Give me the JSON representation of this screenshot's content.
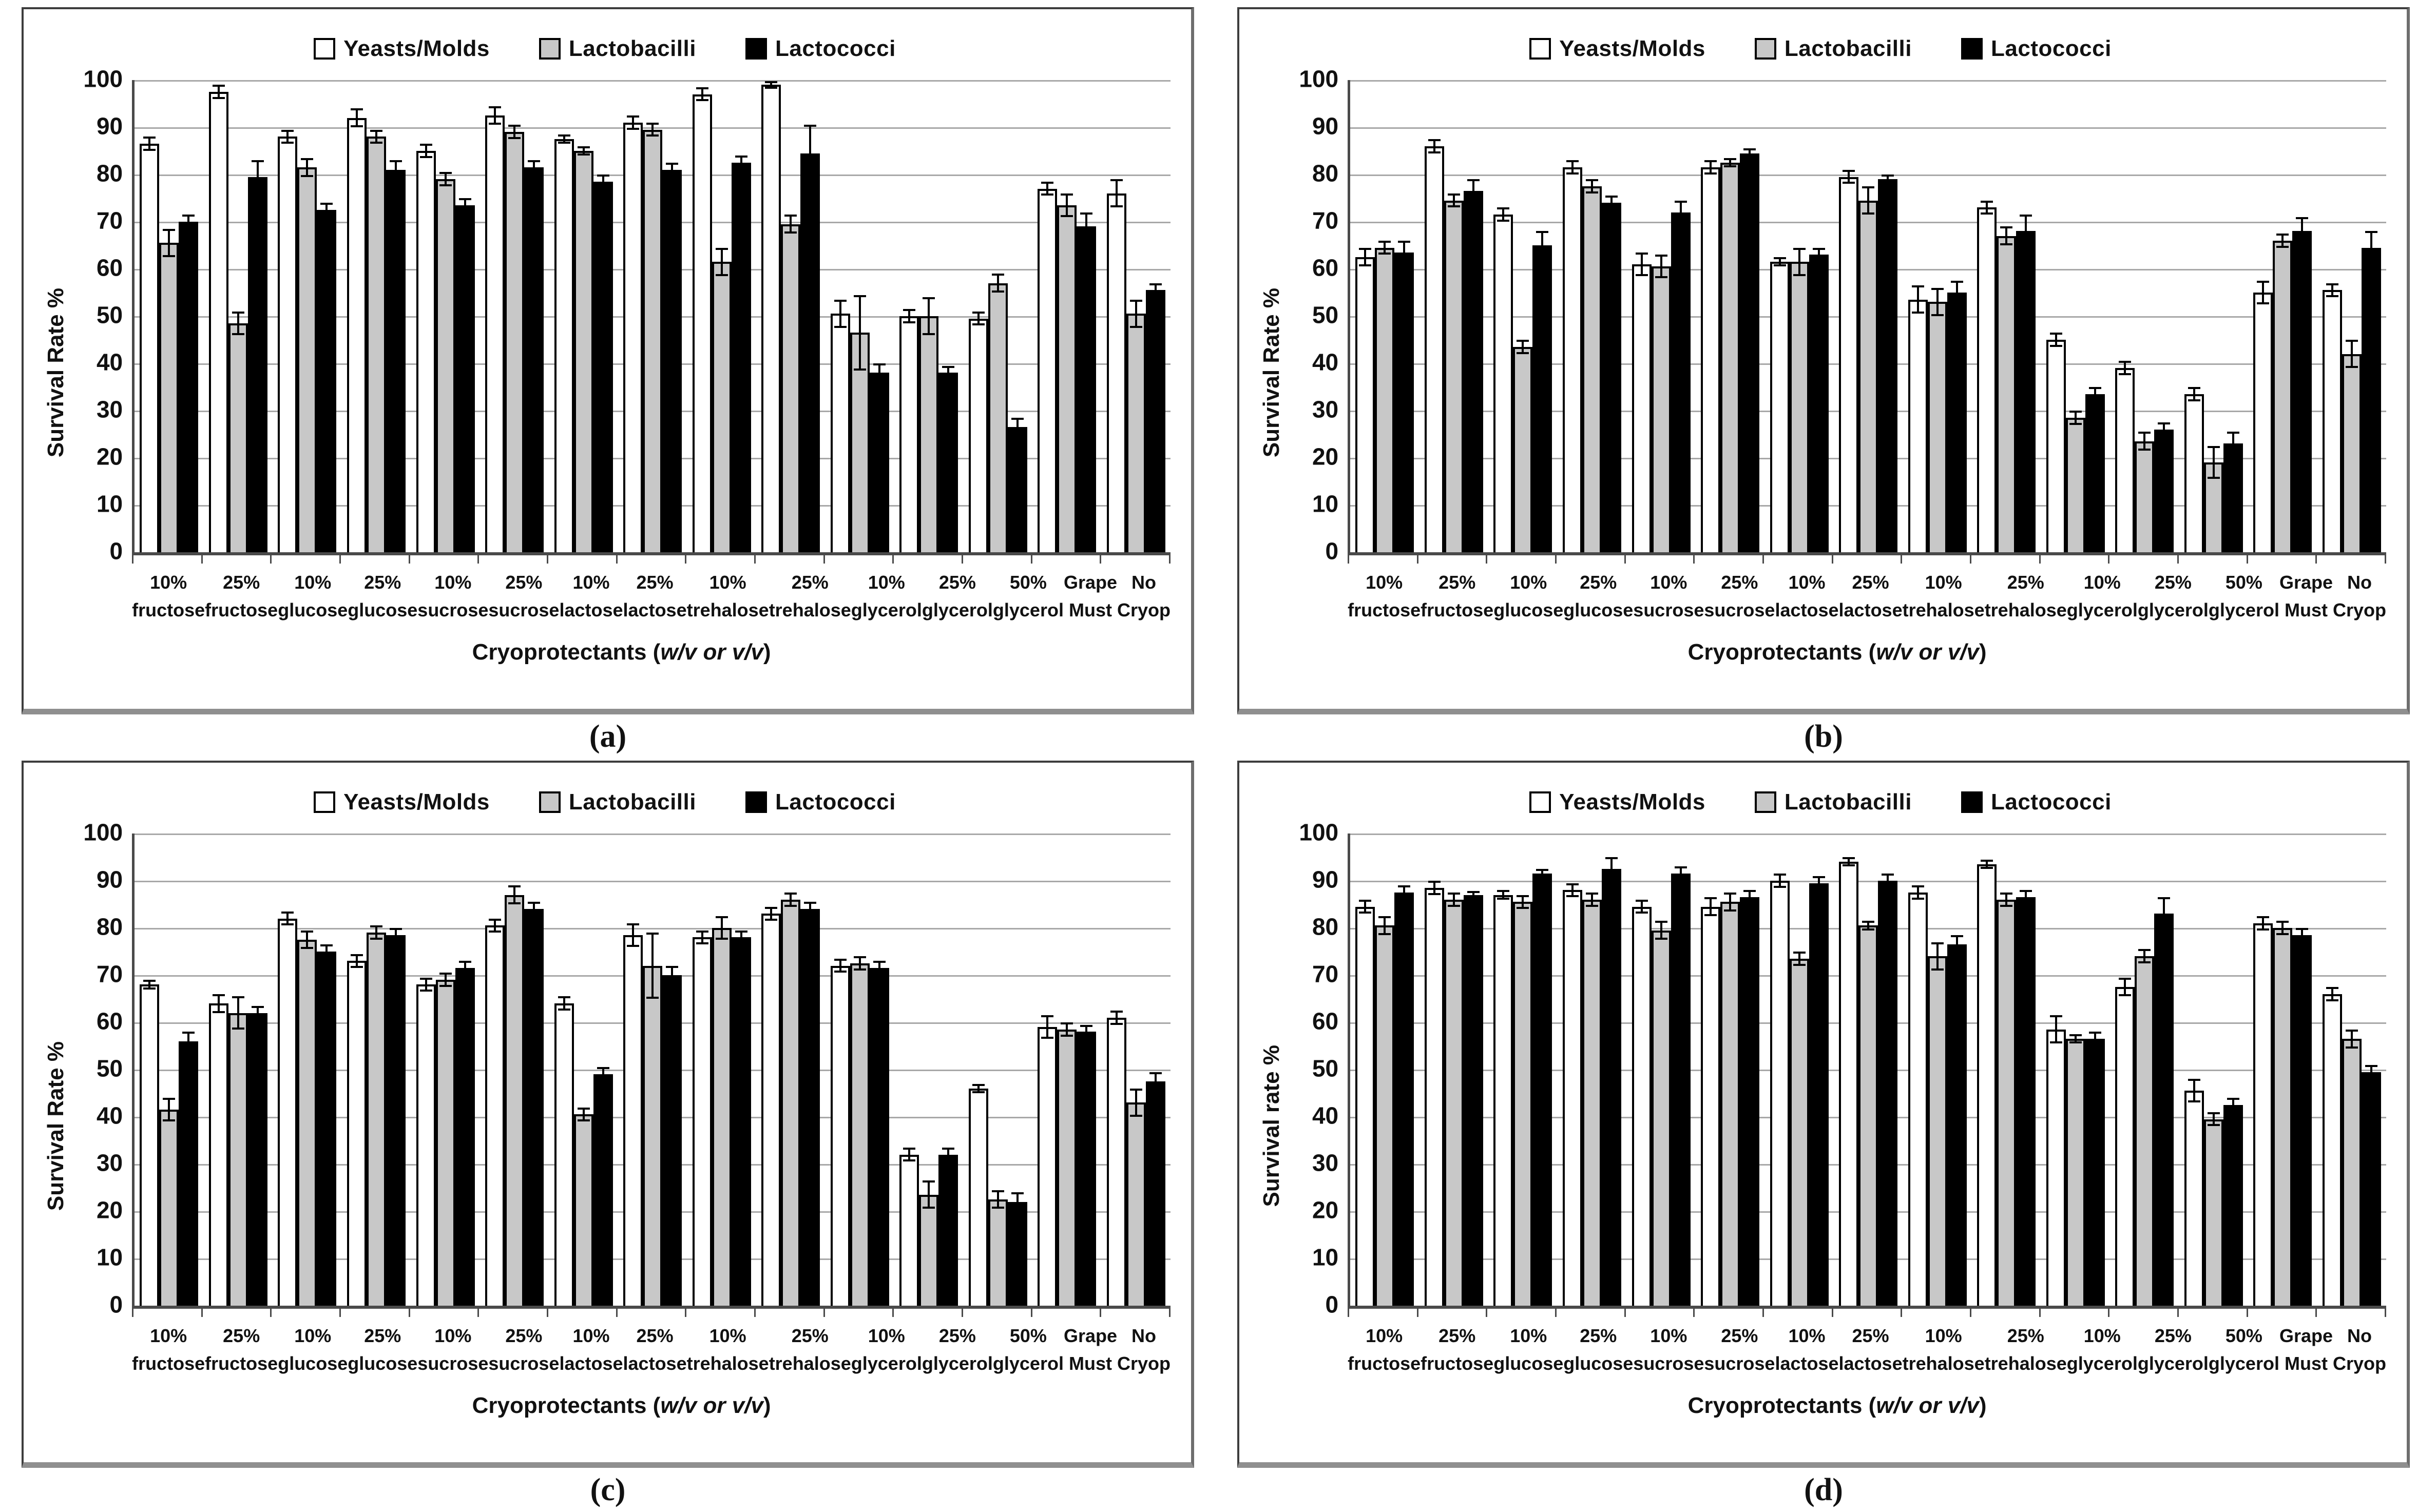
{
  "figure_title": "",
  "legend": {
    "items": [
      {
        "label": "Yeasts/Molds",
        "fill": "#ffffff",
        "border": "#000000"
      },
      {
        "label": "Lactobacilli",
        "fill": "#c8c8c8",
        "border": "#000000"
      },
      {
        "label": "Lactococci",
        "fill": "#000000",
        "border": "#000000"
      }
    ]
  },
  "axis": {
    "ymin": 0,
    "ymax": 100,
    "ystep": 10,
    "xtitle": {
      "prefix": "Cryoprotectants (",
      "italic": "w/v or v/v",
      "suffix": ")"
    }
  },
  "categories": [
    [
      "10%",
      "fructose"
    ],
    [
      "25%",
      "fructose"
    ],
    [
      "10%",
      "glucose"
    ],
    [
      "25%",
      "glucose"
    ],
    [
      "10%",
      "sucrose"
    ],
    [
      "25%",
      "sucrose"
    ],
    [
      "10%",
      "lactose"
    ],
    [
      "25%",
      "lactose"
    ],
    [
      "10%",
      "trehalose"
    ],
    [
      "25%",
      "trehalose"
    ],
    [
      "10%",
      "glycerol"
    ],
    [
      "25%",
      "glycerol"
    ],
    [
      "50%",
      "glycerol"
    ],
    [
      "Grape",
      "Must"
    ],
    [
      "No Cryop"
    ]
  ],
  "chart_data": [
    {
      "type": "bar",
      "caption": "(a)",
      "ylabel": "Survival Rate %",
      "ylim": [
        0,
        100
      ],
      "grid": true,
      "legend_position": "top",
      "categories": [
        "10% fructose",
        "25% fructose",
        "10% glucose",
        "25% glucose",
        "10% sucrose",
        "25% sucrose",
        "10% lactose",
        "25% lactose",
        "10% trehalose",
        "25% trehalose",
        "10% glycerol",
        "25% glycerol",
        "50% glycerol",
        "Grape Must",
        "No Cryop"
      ],
      "series": [
        {
          "name": "Yeasts/Molds",
          "values": [
            86.5,
            97.5,
            88,
            92,
            85,
            92.5,
            87.5,
            91,
            97,
            99,
            50.5,
            50,
            49.5,
            77,
            76
          ],
          "errors": [
            1.5,
            1.5,
            1.5,
            2,
            1.5,
            2,
            1,
            1.5,
            1.5,
            0.8,
            3,
            1.5,
            1.5,
            1.5,
            3
          ]
        },
        {
          "name": "Lactobacilli",
          "values": [
            65.5,
            48.5,
            81.5,
            88,
            79,
            89,
            85,
            89.5,
            61.5,
            69.5,
            46.5,
            50,
            57,
            73.5,
            50.5
          ],
          "errors": [
            3,
            2.5,
            2,
            1.5,
            1.5,
            1.5,
            1,
            1.5,
            3,
            2,
            8,
            4,
            2,
            2.5,
            3
          ]
        },
        {
          "name": "Lactococci",
          "values": [
            70,
            79.5,
            72.5,
            81,
            73.5,
            81.5,
            78.5,
            81,
            82.5,
            84.5,
            38,
            38,
            26.5,
            69,
            55.5
          ],
          "errors": [
            1.5,
            3.5,
            1.5,
            2,
            1.5,
            1.5,
            1.5,
            1.5,
            1.5,
            6,
            2,
            1.5,
            2,
            3,
            1.5
          ]
        }
      ]
    },
    {
      "type": "bar",
      "caption": "(b)",
      "ylabel": "Survival Rate %",
      "ylim": [
        0,
        100
      ],
      "grid": true,
      "legend_position": "top",
      "categories": [
        "10% fructose",
        "25% fructose",
        "10% glucose",
        "25% glucose",
        "10% sucrose",
        "25% sucrose",
        "10% lactose",
        "25% lactose",
        "10% trehalose",
        "25% trehalose",
        "10% glycerol",
        "25% glycerol",
        "50% glycerol",
        "Grape Must",
        "No Cryop"
      ],
      "series": [
        {
          "name": "Yeasts/Molds",
          "values": [
            62.5,
            86,
            71.5,
            81.5,
            61,
            81.5,
            61.5,
            79.5,
            53.5,
            73,
            45,
            39,
            33.5,
            55,
            55.5
          ],
          "errors": [
            2,
            1.5,
            1.5,
            1.5,
            2.5,
            1.5,
            1,
            1.5,
            3,
            1.5,
            1.5,
            1.5,
            1.5,
            2.5,
            1.5
          ]
        },
        {
          "name": "Lactobacilli",
          "values": [
            64.5,
            74.5,
            43.5,
            77.5,
            60.5,
            82.5,
            61.5,
            74.5,
            53,
            67,
            28.5,
            23.5,
            19,
            66,
            42
          ],
          "errors": [
            1.5,
            1.5,
            1.5,
            1.5,
            2.5,
            1,
            3,
            3,
            3,
            2,
            1.5,
            2,
            3.5,
            1.5,
            3
          ]
        },
        {
          "name": "Lactococci",
          "values": [
            63.5,
            76.5,
            65,
            74,
            72,
            84.5,
            63,
            79,
            55,
            68,
            33.5,
            26,
            23,
            68,
            64.5
          ],
          "errors": [
            2.5,
            2.5,
            3,
            1.5,
            2.5,
            1,
            1.5,
            1,
            2.5,
            3.5,
            1.5,
            1.5,
            2.5,
            3,
            3.5
          ]
        }
      ]
    },
    {
      "type": "bar",
      "caption": "(c)",
      "ylabel": "Survival Rate %",
      "ylim": [
        0,
        100
      ],
      "grid": true,
      "legend_position": "top",
      "categories": [
        "10% fructose",
        "25% fructose",
        "10% glucose",
        "25% glucose",
        "10% sucrose",
        "25% sucrose",
        "10% lactose",
        "25% lactose",
        "10% trehalose",
        "25% trehalose",
        "10% glycerol",
        "25% glycerol",
        "50% glycerol",
        "Grape Must",
        "No Cryop"
      ],
      "series": [
        {
          "name": "Yeasts/Molds",
          "values": [
            68,
            64,
            82,
            73,
            68,
            80.5,
            64,
            78.5,
            78,
            83,
            72,
            32,
            46,
            59,
            61
          ],
          "errors": [
            1,
            2,
            1.5,
            1.5,
            1.5,
            1.5,
            1.5,
            2.5,
            1.5,
            1.5,
            1.5,
            1.5,
            1,
            2.5,
            1.5
          ]
        },
        {
          "name": "Lactobacilli",
          "values": [
            41.5,
            62,
            77.5,
            79,
            69,
            87,
            40.5,
            72,
            80,
            86,
            72.5,
            23.5,
            22.5,
            58.5,
            43
          ],
          "errors": [
            2.5,
            3.5,
            2,
            1.5,
            1.5,
            2,
            1.5,
            7,
            2.5,
            1.5,
            1.5,
            3,
            2,
            1.5,
            3
          ]
        },
        {
          "name": "Lactococci",
          "values": [
            56,
            62,
            75,
            78.5,
            71.5,
            84,
            49,
            70,
            78,
            84,
            71.5,
            32,
            22,
            58,
            47.5
          ],
          "errors": [
            2,
            1.5,
            1.5,
            1.5,
            1.5,
            1.5,
            1.5,
            2,
            1.5,
            1.5,
            1.5,
            1.5,
            2,
            1.5,
            2
          ]
        }
      ]
    },
    {
      "type": "bar",
      "caption": "(d)",
      "ylabel": "Survival rate %",
      "ylim": [
        0,
        100
      ],
      "grid": true,
      "legend_position": "top",
      "categories": [
        "10% fructose",
        "25% fructose",
        "10% glucose",
        "25% glucose",
        "10% sucrose",
        "25% sucrose",
        "10% lactose",
        "25% lactose",
        "10% trehalose",
        "25% trehalose",
        "10% glycerol",
        "25% glycerol",
        "50% glycerol",
        "Grape Must",
        "No Cryop"
      ],
      "series": [
        {
          "name": "Yeasts/Molds",
          "values": [
            84.5,
            88.5,
            87,
            88,
            84.5,
            84.5,
            90,
            94,
            87.5,
            93.5,
            58.5,
            67.5,
            45.5,
            81,
            66
          ],
          "errors": [
            1.5,
            1.5,
            1,
            1.5,
            1.5,
            2,
            1.5,
            1,
            1.5,
            1,
            3,
            2,
            2.5,
            1.5,
            1.5
          ]
        },
        {
          "name": "Lactobacilli",
          "values": [
            80.5,
            86,
            85.5,
            86,
            79.5,
            85.5,
            73.5,
            80.5,
            74,
            86,
            56.5,
            74,
            39.5,
            80,
            56.5
          ],
          "errors": [
            2,
            1.5,
            1.5,
            1.5,
            2,
            2,
            1.5,
            1,
            3,
            1.5,
            1,
            1.5,
            1.5,
            1.5,
            2
          ]
        },
        {
          "name": "Lactococci",
          "values": [
            87.5,
            87,
            91.5,
            92.5,
            91.5,
            86.5,
            89.5,
            90,
            76.5,
            86.5,
            56.5,
            83,
            42.5,
            78.5,
            49.5
          ],
          "errors": [
            1.5,
            0.8,
            1,
            2.5,
            1.5,
            1.5,
            1.5,
            1.5,
            2,
            1.5,
            1.5,
            3.5,
            1.5,
            1.5,
            1.5
          ]
        }
      ]
    }
  ]
}
